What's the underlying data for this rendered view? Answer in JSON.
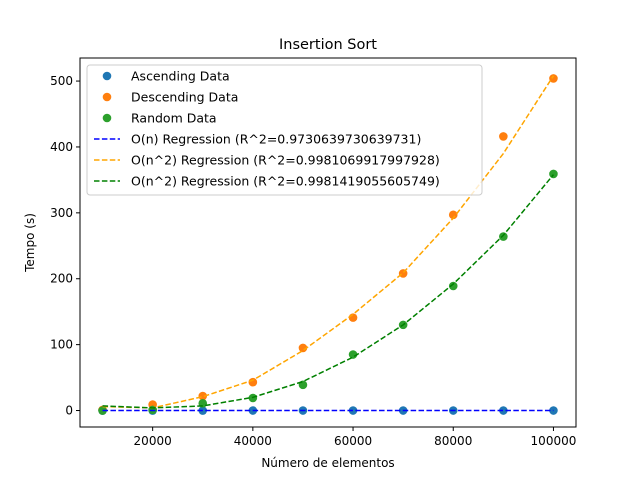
{
  "chart_data": {
    "type": "scatter",
    "title": "Insertion Sort",
    "xlabel": "Número de elementos",
    "ylabel": "Tempo (s)",
    "xlim": [
      5500,
      104500
    ],
    "ylim": [
      -25,
      535
    ],
    "xticks": [
      20000,
      40000,
      60000,
      80000,
      100000
    ],
    "yticks": [
      0,
      100,
      200,
      300,
      400,
      500
    ],
    "grid": false,
    "legend_position": "upper-left",
    "x": [
      10000,
      20000,
      30000,
      40000,
      50000,
      60000,
      70000,
      80000,
      90000,
      100000
    ],
    "series": [
      {
        "name": "Ascending Data",
        "kind": "points",
        "color": "#1f77b4",
        "values": [
          0.002,
          0.004,
          0.006,
          0.008,
          0.01,
          0.012,
          0.014,
          0.016,
          0.018,
          0.02
        ]
      },
      {
        "name": "Descending Data",
        "kind": "points",
        "color": "#ff7f0e",
        "values": [
          1,
          9,
          22,
          43,
          95,
          141,
          208,
          297,
          416,
          504
        ]
      },
      {
        "name": "Random Data",
        "kind": "points",
        "color": "#2ca02c",
        "values": [
          0,
          1,
          11,
          19,
          39,
          85,
          130,
          189,
          264,
          359
        ]
      },
      {
        "name": "O(n) Regression (R^2=0.9730639730639731)",
        "kind": "line",
        "color": "#0000ff",
        "values": [
          0,
          0,
          0,
          0,
          0,
          0,
          0,
          0,
          0,
          0
        ]
      },
      {
        "name": "O(n^2) Regression (R^2=0.9981069917997928)",
        "kind": "line",
        "color": "#ffa500",
        "values": [
          6,
          4,
          21,
          46,
          91,
          146,
          209,
          292,
          390,
          508
        ]
      },
      {
        "name": "O(n^2) Regression (R^2=0.9981419055605749)",
        "kind": "line",
        "color": "#008000",
        "values": [
          7,
          4,
          7,
          20,
          44,
          81,
          130,
          192,
          266,
          358
        ]
      }
    ]
  }
}
